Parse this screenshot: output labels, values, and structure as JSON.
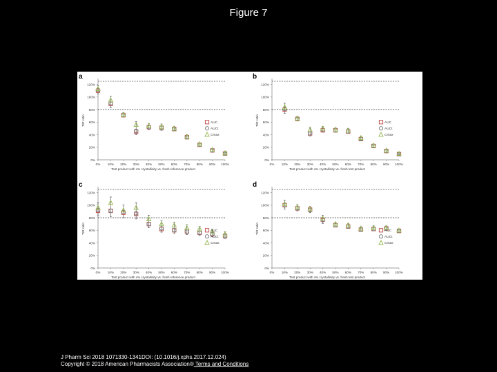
{
  "page": {
    "title": "Figure 7",
    "citation_line": "J Pharm Sci 2018 1071330-1341DOI: (10.1016/j.xphs.2017.12.024)",
    "copyright_text": "Copyright © 2018 American Pharmacists Association®",
    "terms_link": " Terms and Conditions"
  },
  "colors": {
    "auc": "#c0504d",
    "auct": "#7f7f7f",
    "cmax": "#9bbb59",
    "errorbar": "#404040",
    "axis": "#808080",
    "reference_line": "#000000"
  },
  "chart_data": [
    {
      "panel_letter": "a",
      "type": "scatter",
      "x_tick_labels": [
        "0%",
        "10%",
        "20%",
        "30%",
        "40%",
        "50%",
        "60%",
        "70%",
        "80%",
        "90%",
        "100%"
      ],
      "x": [
        0,
        10,
        20,
        30,
        40,
        50,
        60,
        70,
        80,
        90,
        100
      ],
      "xlabel": "Test product with x% crystallinity vs. fresh reference product",
      "ylabel": "T/R ratio",
      "ylim": [
        0,
        125
      ],
      "y_tick_labels": [
        "0%",
        "20%",
        "40%",
        "60%",
        "80%",
        "100%",
        "120%"
      ],
      "reference_lines": [
        80,
        125
      ],
      "legend_position": "right",
      "series": [
        {
          "name": "AUC",
          "marker": "square",
          "values": [
            110,
            89,
            71,
            45,
            52,
            51,
            49,
            36,
            24,
            15,
            10
          ]
        },
        {
          "name": "AUCt",
          "marker": "circle",
          "values": [
            111,
            90,
            71,
            46,
            52,
            51,
            49,
            36,
            24,
            15,
            10
          ]
        },
        {
          "name": "Cmax",
          "marker": "triangle",
          "values": [
            113,
            95,
            72,
            56,
            54,
            53,
            50,
            37,
            25,
            16,
            11
          ]
        }
      ],
      "errors": [
        5,
        6,
        3,
        5,
        4,
        4,
        3,
        3,
        2,
        2,
        1
      ]
    },
    {
      "panel_letter": "b",
      "type": "scatter",
      "x_tick_labels": [
        "0%",
        "10%",
        "20%",
        "30%",
        "40%",
        "50%",
        "60%",
        "70%",
        "80%",
        "90%",
        "100%"
      ],
      "x": [
        10,
        20,
        30,
        40,
        50,
        60,
        70,
        80,
        90,
        100
      ],
      "xlabel": "Test product with x% crystallinity vs. fresh test product",
      "ylabel": "T/R ratio",
      "ylim": [
        0,
        125
      ],
      "y_tick_labels": [
        "0%",
        "20%",
        "40%",
        "60%",
        "80%",
        "100%",
        "120%"
      ],
      "reference_lines": [
        80,
        125
      ],
      "legend_position": "right",
      "series": [
        {
          "name": "AUC",
          "marker": "square",
          "values": [
            80,
            65,
            42,
            47,
            47,
            45,
            33,
            22,
            14,
            9
          ]
        },
        {
          "name": "AUCt",
          "marker": "circle",
          "values": [
            81,
            65,
            42,
            48,
            47,
            45,
            33,
            22,
            14,
            9
          ]
        },
        {
          "name": "Cmax",
          "marker": "triangle",
          "values": [
            84,
            66,
            48,
            50,
            48,
            47,
            35,
            23,
            15,
            10
          ]
        }
      ],
      "errors": [
        6,
        3,
        4,
        3,
        3,
        3,
        2,
        2,
        2,
        1
      ]
    },
    {
      "panel_letter": "c",
      "type": "scatter",
      "x_tick_labels": [
        "0%",
        "10%",
        "20%",
        "30%",
        "40%",
        "50%",
        "60%",
        "70%",
        "80%",
        "90%",
        "100%"
      ],
      "x": [
        0,
        10,
        20,
        30,
        40,
        50,
        60,
        70,
        80,
        90,
        100
      ],
      "xlabel": "Test product with x% crystallinity vs. fresh reference product",
      "ylabel": "T/R ratio",
      "ylim": [
        0,
        125
      ],
      "y_tick_labels": [
        "0%",
        "20%",
        "40%",
        "60%",
        "80%",
        "100%",
        "120%"
      ],
      "reference_lines": [
        80,
        125
      ],
      "legend_position": "right",
      "series": [
        {
          "name": "AUC",
          "marker": "square",
          "values": [
            91,
            91,
            88,
            86,
            70,
            62,
            60,
            58,
            56,
            54,
            51
          ]
        },
        {
          "name": "AUCt",
          "marker": "circle",
          "values": [
            92,
            91,
            89,
            87,
            70,
            63,
            60,
            58,
            56,
            54,
            51
          ]
        },
        {
          "name": "Cmax",
          "marker": "triangle",
          "values": [
            96,
            104,
            92,
            96,
            78,
            70,
            68,
            64,
            62,
            58,
            54
          ]
        }
      ],
      "errors": [
        8,
        9,
        8,
        8,
        6,
        5,
        5,
        5,
        4,
        4,
        4
      ]
    },
    {
      "panel_letter": "d",
      "type": "scatter",
      "x_tick_labels": [
        "0%",
        "10%",
        "20%",
        "30%",
        "40%",
        "50%",
        "60%",
        "70%",
        "80%",
        "90%",
        "100%"
      ],
      "x": [
        10,
        20,
        30,
        40,
        50,
        60,
        70,
        80,
        90,
        100
      ],
      "xlabel": "Test product with x% crystallinity vs. fresh test product",
      "ylabel": "T/R ratio",
      "ylim": [
        0,
        125
      ],
      "y_tick_labels": [
        "0%",
        "20%",
        "40%",
        "60%",
        "80%",
        "100%",
        "120%"
      ],
      "reference_lines": [
        80,
        125
      ],
      "legend_position": "right",
      "series": [
        {
          "name": "AUC",
          "marker": "square",
          "values": [
            100,
            95,
            93,
            77,
            68,
            66,
            61,
            62,
            63,
            59
          ]
        },
        {
          "name": "AUCt",
          "marker": "circle",
          "values": [
            100,
            95,
            92,
            76,
            68,
            66,
            61,
            62,
            63,
            59
          ]
        },
        {
          "name": "Cmax",
          "marker": "triangle",
          "values": [
            102,
            97,
            94,
            79,
            70,
            68,
            63,
            64,
            64,
            60
          ]
        }
      ],
      "errors": [
        6,
        4,
        4,
        5,
        3,
        3,
        3,
        3,
        3,
        2
      ]
    }
  ]
}
